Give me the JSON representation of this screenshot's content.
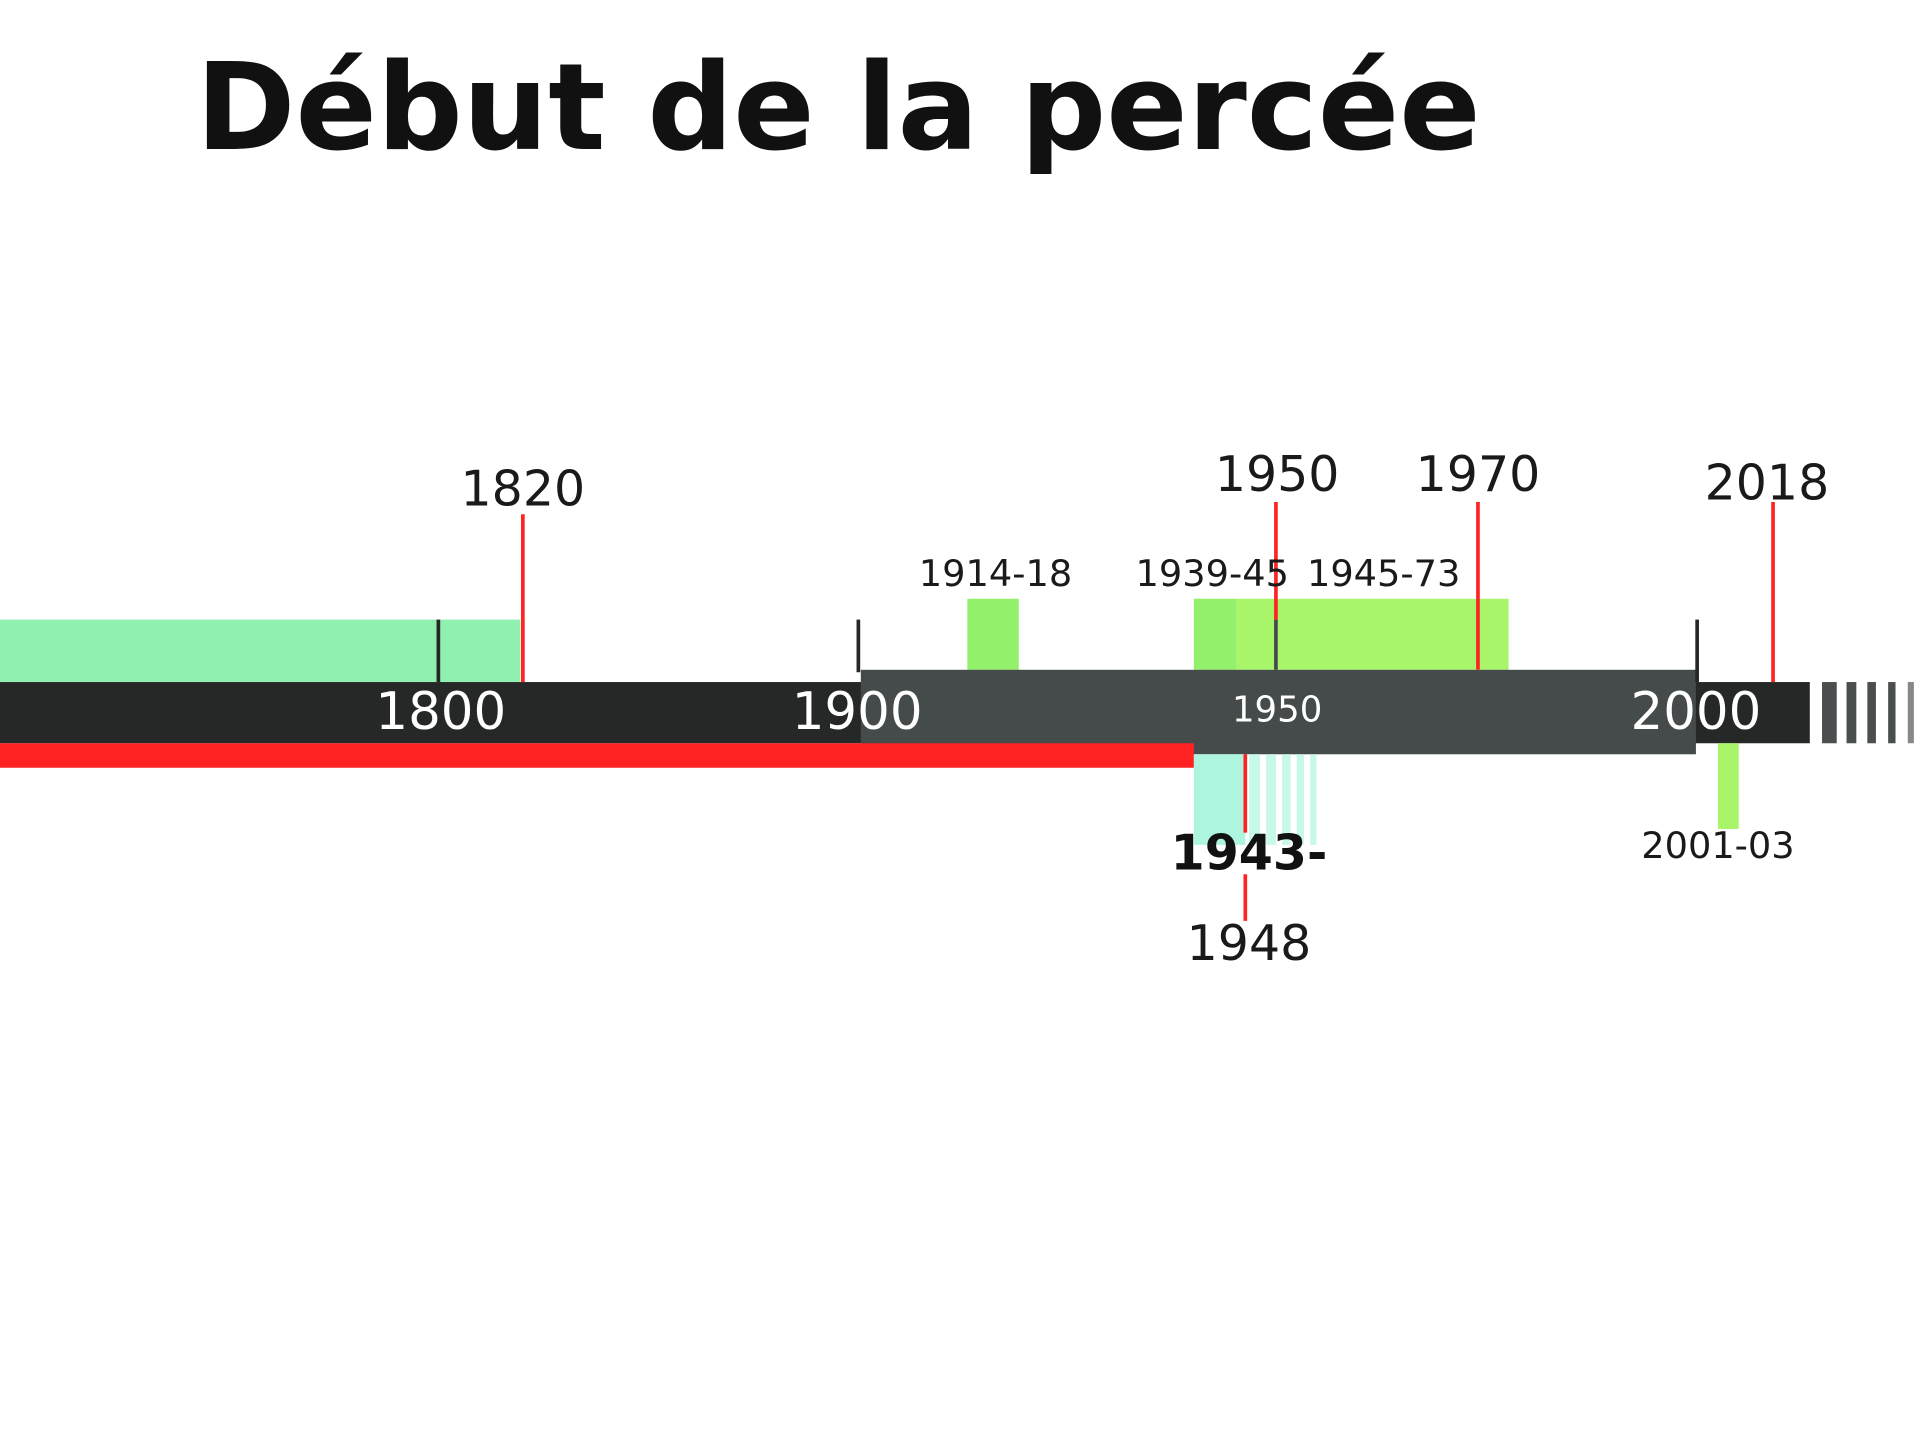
{
  "title": "Début de la percée",
  "axis": {
    "labels": [
      "1800",
      "1900",
      "1950",
      "2000"
    ]
  },
  "events_above": [
    "1820",
    "1950",
    "1970",
    "2018"
  ],
  "periods_above": [
    "1914-18",
    "1939-45",
    "1945-73"
  ],
  "events_below": {
    "period": "1943-",
    "year": "1948",
    "other": "2001-03"
  }
}
